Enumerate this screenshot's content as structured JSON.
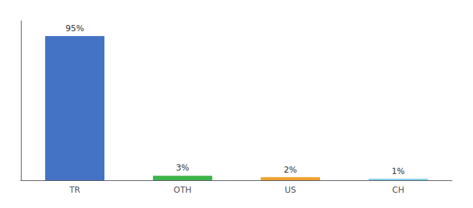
{
  "chart_data": {
    "type": "bar",
    "categories": [
      "TR",
      "OTH",
      "US",
      "CH"
    ],
    "values": [
      95,
      3,
      2,
      1
    ],
    "value_labels": [
      "95%",
      "3%",
      "2%",
      "1%"
    ],
    "colors": [
      "#4472c4",
      "#3cb44b",
      "#f0a030",
      "#87ceeb"
    ],
    "ylim": [
      0,
      105
    ],
    "data_labels": true,
    "tick_labels": "x",
    "grid": false
  }
}
